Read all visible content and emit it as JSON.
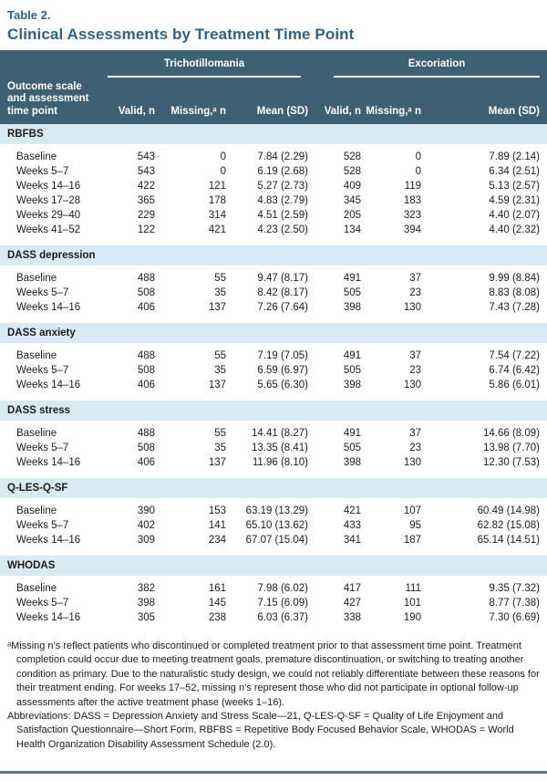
{
  "page": {
    "table_label": "Table 2.",
    "title": "Clinical Assessments by Treatment Time Point"
  },
  "colors": {
    "title_blue": "#2e6385",
    "header_slate": "#3e6073",
    "band_light_blue": "#d8ebf5",
    "bottom_rule": "#4c7d98"
  },
  "table": {
    "row_header": "Outcome scale and assessment time point",
    "groups": [
      {
        "label": "Trichotillomania"
      },
      {
        "label": "Excoriation"
      }
    ],
    "columns": [
      "Valid, n",
      "Missing,ᵃ n",
      "Mean (SD)",
      "Valid, n",
      "Missing,ᵃ n",
      "Mean (SD)"
    ],
    "sections": [
      {
        "name": "RBFBS",
        "rows": [
          {
            "label": "Baseline",
            "values": [
              "543",
              "0",
              "7.84 (2.29)",
              "528",
              "0",
              "7.89 (2.14)"
            ]
          },
          {
            "label": "Weeks 5–7",
            "values": [
              "543",
              "0",
              "6.19 (2.68)",
              "528",
              "0",
              "6.34 (2.51)"
            ]
          },
          {
            "label": "Weeks 14–16",
            "values": [
              "422",
              "121",
              "5.27 (2.73)",
              "409",
              "119",
              "5.13 (2.57)"
            ]
          },
          {
            "label": "Weeks 17–28",
            "values": [
              "365",
              "178",
              "4.83 (2.79)",
              "345",
              "183",
              "4.59 (2.31)"
            ]
          },
          {
            "label": "Weeks 29–40",
            "values": [
              "229",
              "314",
              "4.51 (2.59)",
              "205",
              "323",
              "4.40 (2.07)"
            ]
          },
          {
            "label": "Weeks 41–52",
            "values": [
              "122",
              "421",
              "4.23 (2.50)",
              "134",
              "394",
              "4.40 (2.32)"
            ]
          }
        ]
      },
      {
        "name": "DASS depression",
        "rows": [
          {
            "label": "Baseline",
            "values": [
              "488",
              "55",
              "9.47 (8.17)",
              "491",
              "37",
              "9.99 (8.84)"
            ]
          },
          {
            "label": "Weeks 5–7",
            "values": [
              "508",
              "35",
              "8.42 (8.17)",
              "505",
              "23",
              "8.83 (8.08)"
            ]
          },
          {
            "label": "Weeks 14–16",
            "values": [
              "406",
              "137",
              "7.26 (7.64)",
              "398",
              "130",
              "7.43 (7.28)"
            ]
          }
        ]
      },
      {
        "name": "DASS anxiety",
        "rows": [
          {
            "label": "Baseline",
            "values": [
              "488",
              "55",
              "7.19 (7.05)",
              "491",
              "37",
              "7.54 (7.22)"
            ]
          },
          {
            "label": "Weeks 5–7",
            "values": [
              "508",
              "35",
              "6.59 (6.97)",
              "505",
              "23",
              "6.74 (6.42)"
            ]
          },
          {
            "label": "Weeks 14–16",
            "values": [
              "406",
              "137",
              "5.65 (6.30)",
              "398",
              "130",
              "5.86 (6.01)"
            ]
          }
        ]
      },
      {
        "name": "DASS stress",
        "rows": [
          {
            "label": "Baseline",
            "values": [
              "488",
              "55",
              "14.41 (8.27)",
              "491",
              "37",
              "14.66 (8.09)"
            ]
          },
          {
            "label": "Weeks 5–7",
            "values": [
              "508",
              "35",
              "13.35 (8.41)",
              "505",
              "23",
              "13.98 (7.70)"
            ]
          },
          {
            "label": "Weeks 14–16",
            "values": [
              "406",
              "137",
              "11.96 (8.10)",
              "398",
              "130",
              "12.30 (7.53)"
            ]
          }
        ]
      },
      {
        "name": "Q-LES-Q-SF",
        "rows": [
          {
            "label": "Baseline",
            "values": [
              "390",
              "153",
              "63.19 (13.29)",
              "421",
              "107",
              "60.49 (14.98)"
            ]
          },
          {
            "label": "Weeks 5–7",
            "values": [
              "402",
              "141",
              "65.10 (13.62)",
              "433",
              "95",
              "62.82 (15.08)"
            ]
          },
          {
            "label": "Weeks 14–16",
            "values": [
              "309",
              "234",
              "67.07 (15.04)",
              "341",
              "187",
              "65.14 (14.51)"
            ]
          }
        ]
      },
      {
        "name": "WHODAS",
        "rows": [
          {
            "label": "Baseline",
            "values": [
              "382",
              "161",
              "7.98 (6.02)",
              "417",
              "111",
              "9.35 (7.32)"
            ]
          },
          {
            "label": "Weeks 5–7",
            "values": [
              "398",
              "145",
              "7.15 (6.09)",
              "427",
              "101",
              "8.77 (7.38)"
            ]
          },
          {
            "label": "Weeks 14–16",
            "values": [
              "305",
              "238",
              "6.03 (6.37)",
              "338",
              "190",
              "7.30 (6.69)"
            ]
          }
        ]
      }
    ]
  },
  "footnotes": {
    "note_a": "ᵃMissing n’s reflect patients who discontinued or completed treatment prior to that assessment time point. Treatment completion could occur due to meeting treatment goals, premature discontinuation, or switching to treating another condition as primary. Due to the naturalistic study design, we could not reliably differentiate between these reasons for their treatment ending. For weeks 17–52, missing n’s represent those who did not participate in optional follow-up assessments after the active treatment phase (weeks 1–16).",
    "abbreviations": "Abbreviations: DASS = Depression Anxiety and Stress Scale—21, Q-LES-Q-SF = Quality of Life Enjoyment and Satisfaction Questionnaire—Short Form, RBFBS = Repetitive Body Focused Behavior Scale, WHODAS = World Health Organization Disability Assessment Schedule (2.0)."
  }
}
